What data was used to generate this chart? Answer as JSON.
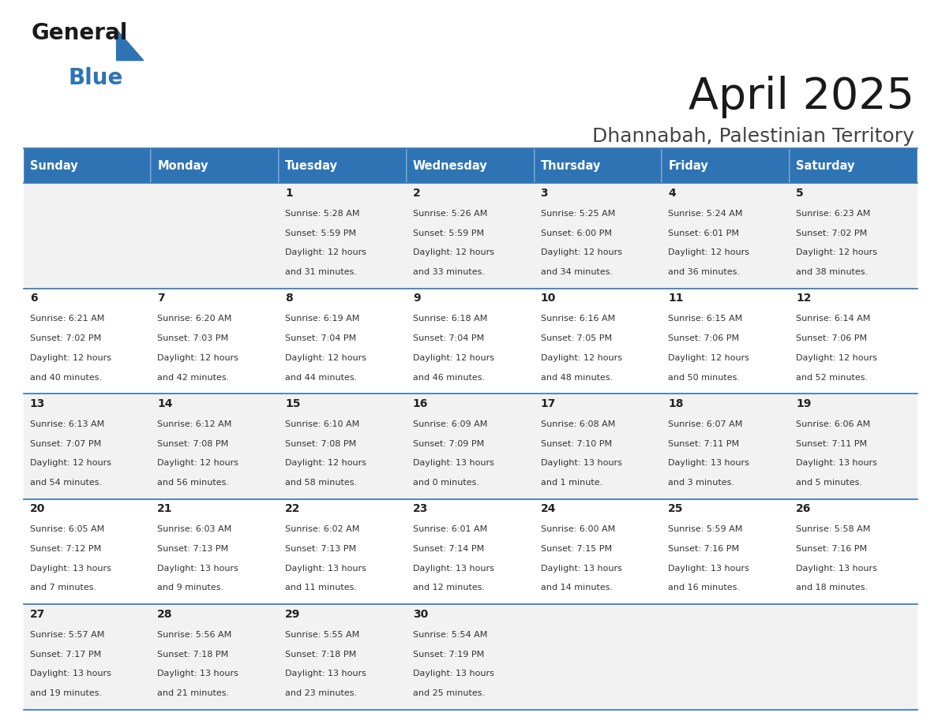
{
  "title": "April 2025",
  "subtitle": "Dhannabah, Palestinian Territory",
  "header_bg": "#2E74B5",
  "header_text_color": "#FFFFFF",
  "row_bg_even": "#F2F2F2",
  "row_bg_odd": "#FFFFFF",
  "border_color": "#2E74B5",
  "days_of_week": [
    "Sunday",
    "Monday",
    "Tuesday",
    "Wednesday",
    "Thursday",
    "Friday",
    "Saturday"
  ],
  "calendar_data": [
    [
      {
        "day": "",
        "sunrise": "",
        "sunset": "",
        "daylight": ""
      },
      {
        "day": "",
        "sunrise": "",
        "sunset": "",
        "daylight": ""
      },
      {
        "day": "1",
        "sunrise": "Sunrise: 5:28 AM",
        "sunset": "Sunset: 5:59 PM",
        "daylight": "Daylight: 12 hours\nand 31 minutes."
      },
      {
        "day": "2",
        "sunrise": "Sunrise: 5:26 AM",
        "sunset": "Sunset: 5:59 PM",
        "daylight": "Daylight: 12 hours\nand 33 minutes."
      },
      {
        "day": "3",
        "sunrise": "Sunrise: 5:25 AM",
        "sunset": "Sunset: 6:00 PM",
        "daylight": "Daylight: 12 hours\nand 34 minutes."
      },
      {
        "day": "4",
        "sunrise": "Sunrise: 5:24 AM",
        "sunset": "Sunset: 6:01 PM",
        "daylight": "Daylight: 12 hours\nand 36 minutes."
      },
      {
        "day": "5",
        "sunrise": "Sunrise: 6:23 AM",
        "sunset": "Sunset: 7:02 PM",
        "daylight": "Daylight: 12 hours\nand 38 minutes."
      }
    ],
    [
      {
        "day": "6",
        "sunrise": "Sunrise: 6:21 AM",
        "sunset": "Sunset: 7:02 PM",
        "daylight": "Daylight: 12 hours\nand 40 minutes."
      },
      {
        "day": "7",
        "sunrise": "Sunrise: 6:20 AM",
        "sunset": "Sunset: 7:03 PM",
        "daylight": "Daylight: 12 hours\nand 42 minutes."
      },
      {
        "day": "8",
        "sunrise": "Sunrise: 6:19 AM",
        "sunset": "Sunset: 7:04 PM",
        "daylight": "Daylight: 12 hours\nand 44 minutes."
      },
      {
        "day": "9",
        "sunrise": "Sunrise: 6:18 AM",
        "sunset": "Sunset: 7:04 PM",
        "daylight": "Daylight: 12 hours\nand 46 minutes."
      },
      {
        "day": "10",
        "sunrise": "Sunrise: 6:16 AM",
        "sunset": "Sunset: 7:05 PM",
        "daylight": "Daylight: 12 hours\nand 48 minutes."
      },
      {
        "day": "11",
        "sunrise": "Sunrise: 6:15 AM",
        "sunset": "Sunset: 7:06 PM",
        "daylight": "Daylight: 12 hours\nand 50 minutes."
      },
      {
        "day": "12",
        "sunrise": "Sunrise: 6:14 AM",
        "sunset": "Sunset: 7:06 PM",
        "daylight": "Daylight: 12 hours\nand 52 minutes."
      }
    ],
    [
      {
        "day": "13",
        "sunrise": "Sunrise: 6:13 AM",
        "sunset": "Sunset: 7:07 PM",
        "daylight": "Daylight: 12 hours\nand 54 minutes."
      },
      {
        "day": "14",
        "sunrise": "Sunrise: 6:12 AM",
        "sunset": "Sunset: 7:08 PM",
        "daylight": "Daylight: 12 hours\nand 56 minutes."
      },
      {
        "day": "15",
        "sunrise": "Sunrise: 6:10 AM",
        "sunset": "Sunset: 7:08 PM",
        "daylight": "Daylight: 12 hours\nand 58 minutes."
      },
      {
        "day": "16",
        "sunrise": "Sunrise: 6:09 AM",
        "sunset": "Sunset: 7:09 PM",
        "daylight": "Daylight: 13 hours\nand 0 minutes."
      },
      {
        "day": "17",
        "sunrise": "Sunrise: 6:08 AM",
        "sunset": "Sunset: 7:10 PM",
        "daylight": "Daylight: 13 hours\nand 1 minute."
      },
      {
        "day": "18",
        "sunrise": "Sunrise: 6:07 AM",
        "sunset": "Sunset: 7:11 PM",
        "daylight": "Daylight: 13 hours\nand 3 minutes."
      },
      {
        "day": "19",
        "sunrise": "Sunrise: 6:06 AM",
        "sunset": "Sunset: 7:11 PM",
        "daylight": "Daylight: 13 hours\nand 5 minutes."
      }
    ],
    [
      {
        "day": "20",
        "sunrise": "Sunrise: 6:05 AM",
        "sunset": "Sunset: 7:12 PM",
        "daylight": "Daylight: 13 hours\nand 7 minutes."
      },
      {
        "day": "21",
        "sunrise": "Sunrise: 6:03 AM",
        "sunset": "Sunset: 7:13 PM",
        "daylight": "Daylight: 13 hours\nand 9 minutes."
      },
      {
        "day": "22",
        "sunrise": "Sunrise: 6:02 AM",
        "sunset": "Sunset: 7:13 PM",
        "daylight": "Daylight: 13 hours\nand 11 minutes."
      },
      {
        "day": "23",
        "sunrise": "Sunrise: 6:01 AM",
        "sunset": "Sunset: 7:14 PM",
        "daylight": "Daylight: 13 hours\nand 12 minutes."
      },
      {
        "day": "24",
        "sunrise": "Sunrise: 6:00 AM",
        "sunset": "Sunset: 7:15 PM",
        "daylight": "Daylight: 13 hours\nand 14 minutes."
      },
      {
        "day": "25",
        "sunrise": "Sunrise: 5:59 AM",
        "sunset": "Sunset: 7:16 PM",
        "daylight": "Daylight: 13 hours\nand 16 minutes."
      },
      {
        "day": "26",
        "sunrise": "Sunrise: 5:58 AM",
        "sunset": "Sunset: 7:16 PM",
        "daylight": "Daylight: 13 hours\nand 18 minutes."
      }
    ],
    [
      {
        "day": "27",
        "sunrise": "Sunrise: 5:57 AM",
        "sunset": "Sunset: 7:17 PM",
        "daylight": "Daylight: 13 hours\nand 19 minutes."
      },
      {
        "day": "28",
        "sunrise": "Sunrise: 5:56 AM",
        "sunset": "Sunset: 7:18 PM",
        "daylight": "Daylight: 13 hours\nand 21 minutes."
      },
      {
        "day": "29",
        "sunrise": "Sunrise: 5:55 AM",
        "sunset": "Sunset: 7:18 PM",
        "daylight": "Daylight: 13 hours\nand 23 minutes."
      },
      {
        "day": "30",
        "sunrise": "Sunrise: 5:54 AM",
        "sunset": "Sunset: 7:19 PM",
        "daylight": "Daylight: 13 hours\nand 25 minutes."
      },
      {
        "day": "",
        "sunrise": "",
        "sunset": "",
        "daylight": ""
      },
      {
        "day": "",
        "sunrise": "",
        "sunset": "",
        "daylight": ""
      },
      {
        "day": "",
        "sunrise": "",
        "sunset": "",
        "daylight": ""
      }
    ]
  ],
  "logo_text_general": "General",
  "logo_text_blue": "Blue",
  "logo_triangle_color": "#2E74B5",
  "title_fontsize": 40,
  "subtitle_fontsize": 18,
  "header_fontsize": 10.5,
  "day_num_fontsize": 10,
  "cell_text_fontsize": 8
}
